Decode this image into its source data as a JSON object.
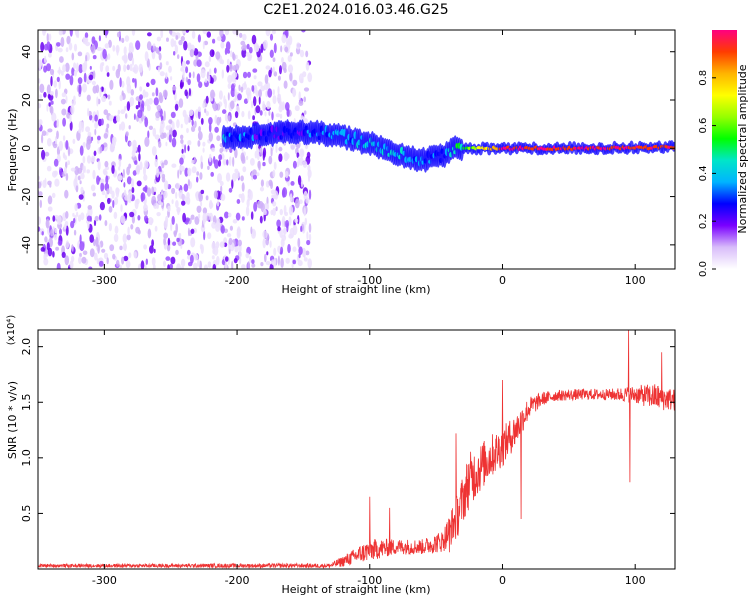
{
  "title": "C2E1.2024.016.03.46.G25",
  "chart_data": [
    {
      "type": "heatmap",
      "xlabel": "Height of straight line (km)",
      "ylabel": "Frequency (Hz)",
      "xlim": [
        -350,
        130
      ],
      "ylim": [
        -50,
        49
      ],
      "xticks": [
        -300,
        -200,
        -100,
        0,
        100
      ],
      "yticks": [
        -40,
        -20,
        0,
        20,
        40
      ],
      "colorbar": {
        "label": "Normalized spectral amplitude",
        "range": [
          0,
          1
        ],
        "ticks": [
          0.0,
          0.2,
          0.4,
          0.6,
          0.8
        ],
        "colors": [
          "#ffffff",
          "#d8bcfa",
          "#7a00ff",
          "#0000ff",
          "#00b4ff",
          "#00e6c8",
          "#00ff00",
          "#96ff00",
          "#ffff00",
          "#ffb400",
          "#ff3c00",
          "#ff0080"
        ]
      },
      "features": {
        "noise_region_x": [
          -350,
          -150
        ],
        "signal_ridge": [
          {
            "x": -205,
            "f": 4,
            "amp": 0.35
          },
          {
            "x": -175,
            "f": 6,
            "amp": 0.22
          },
          {
            "x": -150,
            "f": 7,
            "amp": 0.3
          },
          {
            "x": -120,
            "f": 5,
            "amp": 0.35
          },
          {
            "x": -100,
            "f": 2,
            "amp": 0.4
          },
          {
            "x": -80,
            "f": -2,
            "amp": 0.4
          },
          {
            "x": -60,
            "f": -5,
            "amp": 0.35
          },
          {
            "x": -45,
            "f": -3,
            "amp": 0.3
          },
          {
            "x": -35,
            "f": 0,
            "amp": 0.45
          },
          {
            "x": 0,
            "f": 0,
            "amp": 0.92
          },
          {
            "x": 60,
            "f": 0,
            "amp": 0.95
          },
          {
            "x": 130,
            "f": 0.5,
            "amp": 0.92
          }
        ]
      }
    },
    {
      "type": "line",
      "xlabel": "Height of straight line (km)",
      "ylabel": "SNR (10 * v/v)",
      "yunit": "(x10⁴)",
      "xlim": [
        -350,
        130
      ],
      "ylim": [
        0,
        2.15
      ],
      "xticks": [
        -300,
        -200,
        -100,
        0,
        100
      ],
      "yticks": [
        0.5,
        1.0,
        1.5,
        2.0
      ],
      "color": "#ee3333",
      "envelope": {
        "x": [
          -350,
          -130,
          -120,
          -100,
          -80,
          -60,
          -45,
          -35,
          -25,
          -10,
          0,
          10,
          20,
          30,
          40,
          60,
          80,
          100,
          115,
          130
        ],
        "mean": [
          0.03,
          0.03,
          0.07,
          0.17,
          0.2,
          0.2,
          0.25,
          0.45,
          0.8,
          1.0,
          1.1,
          1.25,
          1.45,
          1.53,
          1.56,
          1.57,
          1.57,
          1.57,
          1.55,
          1.52
        ],
        "spread": [
          0.015,
          0.02,
          0.05,
          0.1,
          0.07,
          0.07,
          0.1,
          0.2,
          0.25,
          0.2,
          0.18,
          0.15,
          0.1,
          0.06,
          0.05,
          0.05,
          0.05,
          0.08,
          0.12,
          0.1
        ]
      },
      "spikes": [
        {
          "x": -100,
          "y": 0.65
        },
        {
          "x": -85,
          "y": 0.55
        },
        {
          "x": -40,
          "y": 0.15
        },
        {
          "x": -35,
          "y": 1.22
        },
        {
          "x": 0,
          "y": 1.7
        },
        {
          "x": 14,
          "y": 0.45
        },
        {
          "x": 96,
          "y": 0.78
        },
        {
          "x": 95,
          "y": 2.15
        },
        {
          "x": 120,
          "y": 1.95
        }
      ]
    }
  ]
}
